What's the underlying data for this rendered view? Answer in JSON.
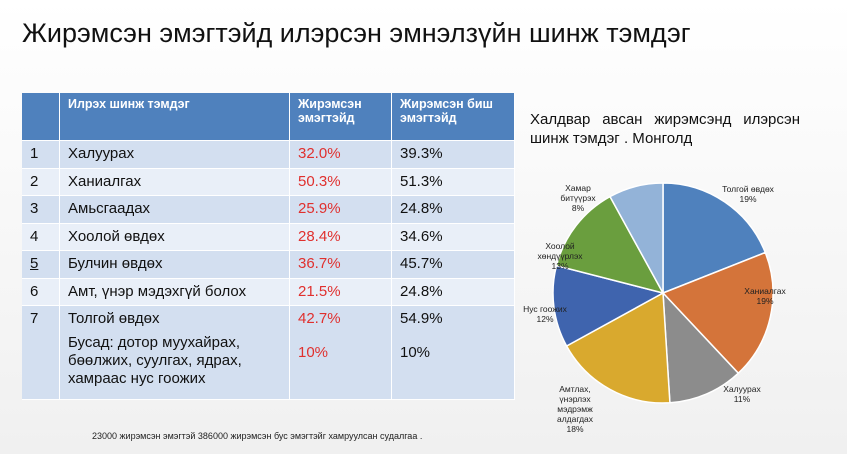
{
  "title": "Жирэмсэн эмэгтэйд илэрсэн эмнэлзүйн шинж тэмдэг",
  "table": {
    "header": [
      "Илрэх шинж тэмдэг",
      "Жирэмсэн эмэгтэйд",
      "Жирэмсэн биш эмэгтэйд"
    ],
    "rows": [
      {
        "num": "1",
        "symptom": "Халуурах",
        "infected": "32.0%",
        "uninfected": "39.3%"
      },
      {
        "num": "2",
        "symptom": "Ханиалгах",
        "infected": "50.3%",
        "uninfected": "51.3%"
      },
      {
        "num": "3",
        "symptom": "Амьсгаадах",
        "infected": "25.9%",
        "uninfected": "24.8%"
      },
      {
        "num": "4",
        "symptom": "Хоолой өвдөх",
        "infected": "28.4%",
        "uninfected": "34.6%"
      },
      {
        "num": "5",
        "symptom": "Булчин өвдөх",
        "infected": "36.7%",
        "uninfected": "45.7%"
      },
      {
        "num": "6",
        "symptom": "Амт, үнэр мэдэхгүй болох",
        "infected": "21.5%",
        "uninfected": "24.8%"
      },
      {
        "num": "7",
        "symptom": "Толгой өвдөх",
        "infected": "42.7%",
        "uninfected": "54.9%"
      }
    ],
    "other": {
      "symptom": "Бусад: дотор муухайрах, бөөлжих, суулгах, ядрах, хамраас нус гоожих",
      "infected": "10%",
      "uninfected": "10%"
    }
  },
  "chart_data": {
    "type": "pie",
    "title": "Халдвар авсан жирэмсэнд илэрсэн шинж тэмдэг . Монголд",
    "categories": [
      "Толгой өвдөх",
      "Ханиалгах",
      "Халуурах",
      "Амтлах, үнэрлэх мэдрэмж алдагдах",
      "Нус гоожих",
      "Хоолой хөндүүрлэх",
      "Хамар битүүрэх"
    ],
    "values": [
      19,
      19,
      11,
      18,
      12,
      13,
      8
    ],
    "value_labels": [
      "19%",
      "19%",
      "11%",
      "18%",
      "12%",
      "13%",
      "8%"
    ],
    "colors": [
      "#4f81bd",
      "#d4743a",
      "#8c8c8c",
      "#d9a92e",
      "#3f64ae",
      "#6a9e3e",
      "#93b3d8"
    ]
  },
  "footnote": "23000 жирэмсэн эмэгтэй 386000 жирэмсэн бус эмэгтэйг хамруулсан судалгаа ."
}
